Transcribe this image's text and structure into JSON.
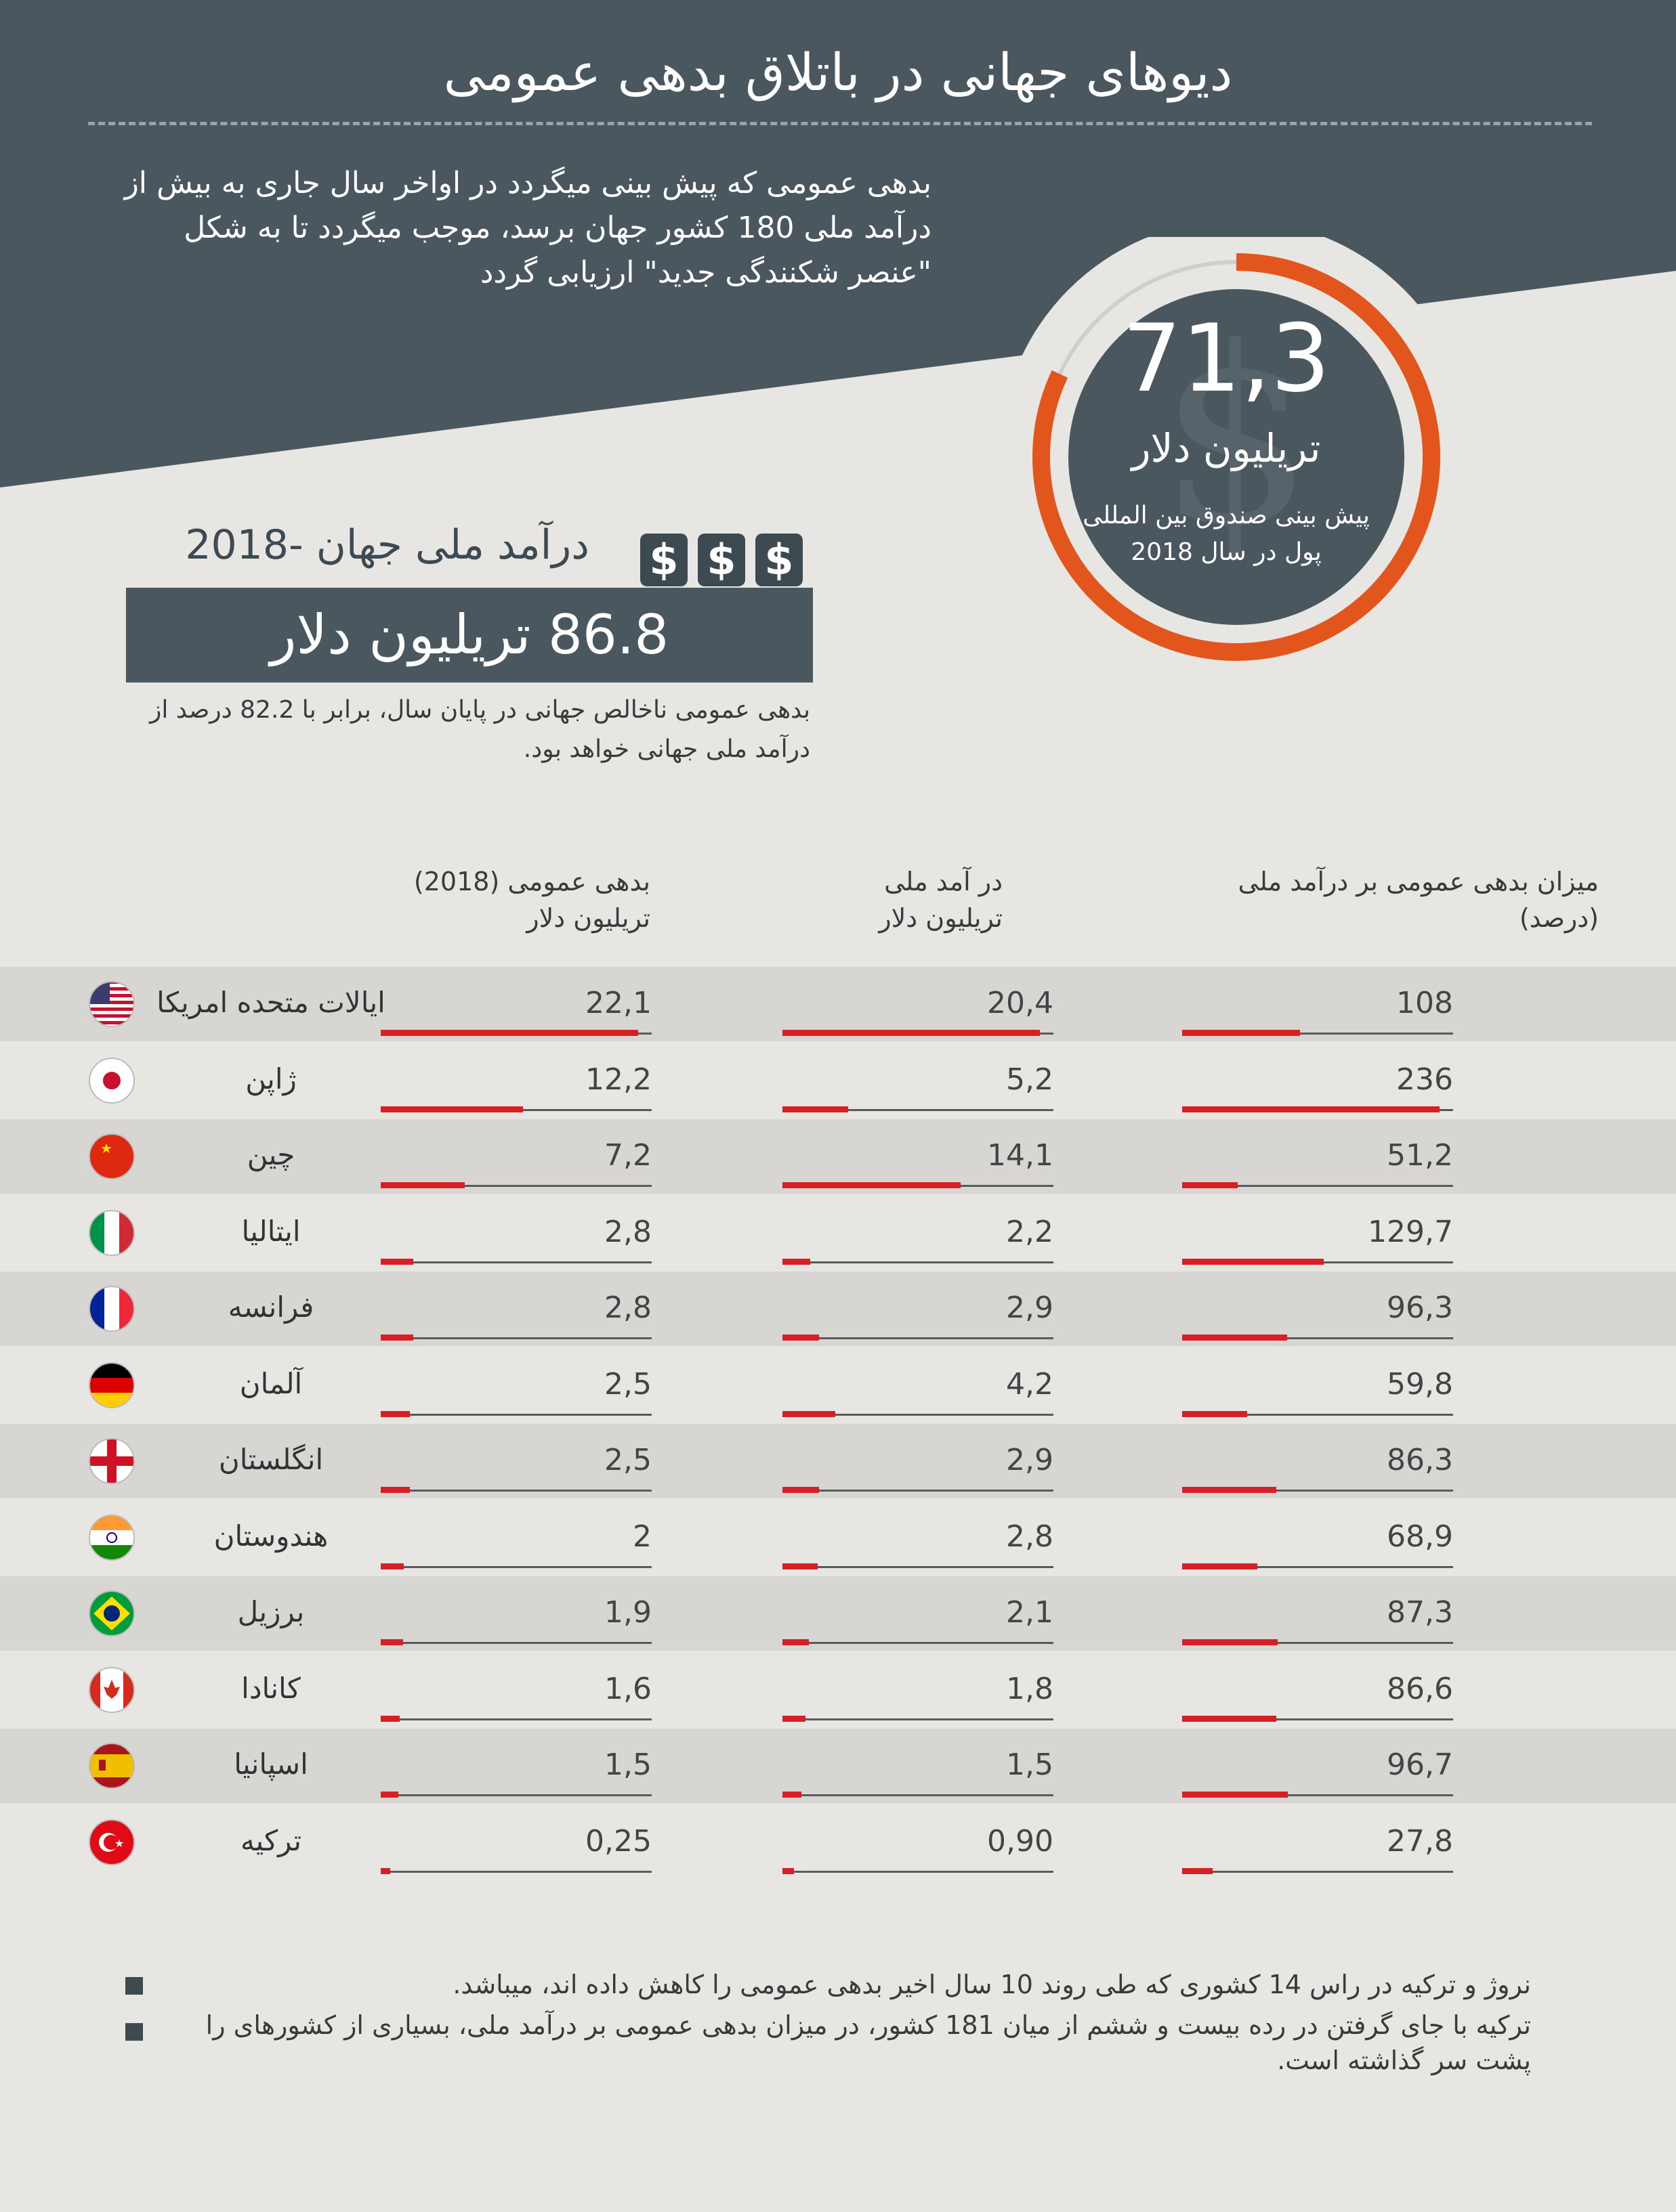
{
  "title": "دیوهای جهانی در باتلاق بدهی عمومی",
  "intro": "بدهی عمومی که پیش بینی میگردد در اواخر سال جاری به بیش از درآمد ملی 180 کشور جهان برسد، موجب میگردد تا به شکل \"عنصر شکنندگی جدید\" ارزیابی گردد",
  "global_debt": {
    "value": "71,3",
    "unit": "تریلیون دلار",
    "note": "پیش بینی صندوق بین المللی پول در سال 2018",
    "ring_fraction": 0.82
  },
  "gni": {
    "heading": "درآمد ملی جهان -2018",
    "dollar_icon": "$",
    "value": "86.8 تریلیون دلار",
    "note": "بدهی عمومی ناخالص جهانی در پایان سال، برابر با 82.2 درصد از درآمد ملی جهانی خواهد بود."
  },
  "colors": {
    "header_bg": "#4b575e",
    "accent_orange": "#e2561d",
    "bar_red": "#d71f26"
  },
  "chart_data": {
    "type": "bar",
    "categories": [
      "ایالات متحده امریکا",
      "ژاپن",
      "چین",
      "ایتالیا",
      "فرانسه",
      "آلمان",
      "انگلستان",
      "هندوستان",
      "برزیل",
      "کانادا",
      "اسپانیا",
      "ترکیه"
    ],
    "flags": [
      "us-flag-icon",
      "japan-flag-icon",
      "china-flag-icon",
      "italy-flag-icon",
      "france-flag-icon",
      "germany-flag-icon",
      "england-flag-icon",
      "india-flag-icon",
      "brazil-flag-icon",
      "canada-flag-icon",
      "spain-flag-icon",
      "turkey-flag-icon"
    ],
    "columns": {
      "debt": "بدهی عمومی (2018)\nتریلیون دلار",
      "gdp": "در آمد ملی\nتریلیون دلار",
      "ratio": "میزان بدهی عمومی بر درآمد ملی\n(درصد)"
    },
    "series": [
      {
        "name": "debt",
        "labels": [
          "22,1",
          "12,2",
          "7,2",
          "2,8",
          "2,8",
          "2,5",
          "2,5",
          "2",
          "1,9",
          "1,6",
          "1,5",
          "0,25"
        ],
        "values": [
          22.1,
          12.2,
          7.2,
          2.8,
          2.8,
          2.5,
          2.5,
          2,
          1.9,
          1.6,
          1.5,
          0.25
        ],
        "max": 22.1
      },
      {
        "name": "gdp",
        "labels": [
          "20,4",
          "5,2",
          "14,1",
          "2,2",
          "2,9",
          "4,2",
          "2,9",
          "2,8",
          "2,1",
          "1,8",
          "1,5",
          "0,90"
        ],
        "values": [
          20.4,
          5.2,
          14.1,
          2.2,
          2.9,
          4.2,
          2.9,
          2.8,
          2.1,
          1.8,
          1.5,
          0.9
        ],
        "max": 20.4
      },
      {
        "name": "ratio",
        "labels": [
          "108",
          "236",
          "51,2",
          "129,7",
          "96,3",
          "59,8",
          "86,3",
          "68,9",
          "87,3",
          "86,6",
          "96,7",
          "27,8"
        ],
        "values": [
          108,
          236,
          51.2,
          129.7,
          96.3,
          59.8,
          86.3,
          68.9,
          87.3,
          86.6,
          96.7,
          27.8
        ],
        "max": 236
      }
    ]
  },
  "footnotes": [
    "نروژ و ترکیه در راس 14 کشوری که طی روند 10 سال اخیر بدهی عمومی را کاهش داده اند، میباشد.",
    "ترکیه با جای گرفتن در رده بیست و ششم از میان 181 کشور، در میزان بدهی عمومی بر درآمد ملی، بسیاری از کشورهای را پشت سر گذاشته است."
  ]
}
